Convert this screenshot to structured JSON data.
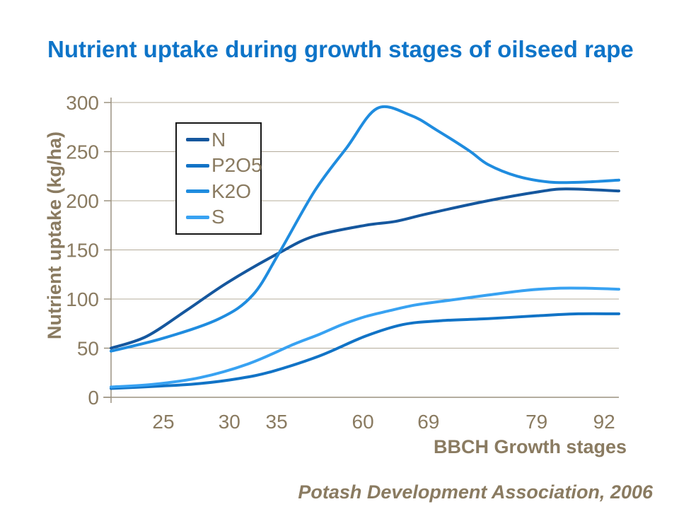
{
  "page": {
    "title": "Nutrient uptake during growth stages of oilseed rape",
    "source": "Potash Development Association, 2006"
  },
  "style": {
    "title_color": "#0E74C8",
    "axis_text_color": "#8A7B61",
    "grid_color": "#B5AC9B",
    "axis_line_color": "#9C9280",
    "legend_border_color": "#161616",
    "background": "#FFFFFF"
  },
  "chart_data": {
    "type": "line",
    "title": "Nutrient uptake during growth stages of oilseed rape",
    "xlabel": "BBCH Growth stages",
    "ylabel": "Nutrient uptake (kg/ha)",
    "ylim": [
      0,
      300
    ],
    "yticks": [
      0,
      50,
      100,
      150,
      200,
      250,
      300
    ],
    "grid": "horizontal",
    "legend_position": "inside-upper-left",
    "x_ticks": [
      {
        "label": "25",
        "pos": 0.103
      },
      {
        "label": "30",
        "pos": 0.233
      },
      {
        "label": "35",
        "pos": 0.326
      },
      {
        "label": "60",
        "pos": 0.496
      },
      {
        "label": "69",
        "pos": 0.625
      },
      {
        "label": "79",
        "pos": 0.838
      },
      {
        "label": "92",
        "pos": 0.971
      }
    ],
    "series": [
      {
        "name": "N",
        "color": "#15579E",
        "points": [
          [
            0,
            50
          ],
          [
            0.07,
            62
          ],
          [
            0.15,
            89
          ],
          [
            0.23,
            117
          ],
          [
            0.331,
            147
          ],
          [
            0.4,
            164
          ],
          [
            0.5,
            175
          ],
          [
            0.56,
            179
          ],
          [
            0.625,
            187
          ],
          [
            0.742,
            200
          ],
          [
            0.84,
            209
          ],
          [
            0.895,
            212
          ],
          [
            1,
            210
          ]
        ]
      },
      {
        "name": "P2O5",
        "color": "#1173C6",
        "points": [
          [
            0,
            9
          ],
          [
            0.1,
            11.5
          ],
          [
            0.175,
            14
          ],
          [
            0.25,
            19
          ],
          [
            0.315,
            26
          ],
          [
            0.41,
            42
          ],
          [
            0.5,
            62
          ],
          [
            0.575,
            74
          ],
          [
            0.65,
            78
          ],
          [
            0.742,
            80
          ],
          [
            0.84,
            83
          ],
          [
            0.92,
            85
          ],
          [
            1,
            85
          ]
        ]
      },
      {
        "name": "K2O",
        "color": "#1F8CDF",
        "points": [
          [
            0,
            47
          ],
          [
            0.102,
            60
          ],
          [
            0.213,
            80
          ],
          [
            0.279,
            104
          ],
          [
            0.331,
            147
          ],
          [
            0.401,
            210
          ],
          [
            0.464,
            254
          ],
          [
            0.524,
            294
          ],
          [
            0.59,
            287
          ],
          [
            0.641,
            272
          ],
          [
            0.705,
            251
          ],
          [
            0.742,
            237
          ],
          [
            0.8,
            225
          ],
          [
            0.864,
            219
          ],
          [
            0.93,
            219
          ],
          [
            1,
            221
          ]
        ]
      },
      {
        "name": "S",
        "color": "#38A2F2",
        "points": [
          [
            0,
            10.5
          ],
          [
            0.08,
            13
          ],
          [
            0.175,
            20
          ],
          [
            0.27,
            34
          ],
          [
            0.36,
            54
          ],
          [
            0.41,
            64
          ],
          [
            0.455,
            74
          ],
          [
            0.5,
            82
          ],
          [
            0.547,
            88
          ],
          [
            0.6,
            94
          ],
          [
            0.67,
            99
          ],
          [
            0.742,
            104
          ],
          [
            0.82,
            109
          ],
          [
            0.88,
            111
          ],
          [
            0.94,
            111
          ],
          [
            1,
            110
          ]
        ]
      }
    ]
  }
}
